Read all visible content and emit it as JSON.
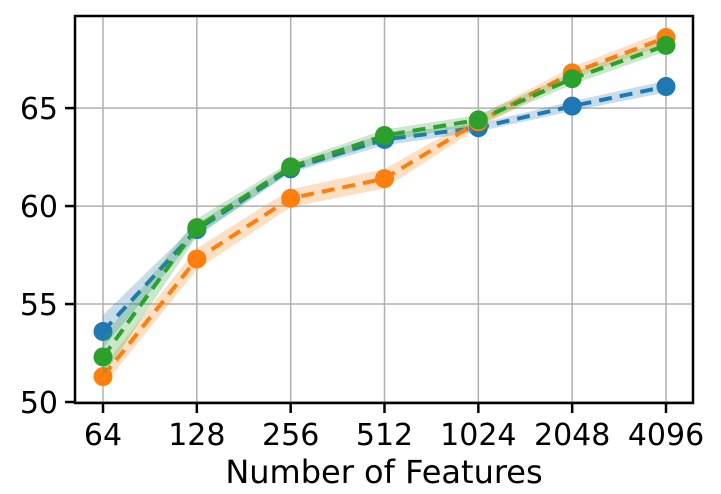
{
  "chart_data": {
    "type": "line",
    "x": [
      64,
      128,
      256,
      512,
      1024,
      2048,
      4096
    ],
    "x_scale": "log2",
    "xtick_labels": [
      "64",
      "128",
      "256",
      "512",
      "1024",
      "2048",
      "4096"
    ],
    "yticks": [
      50,
      55,
      60,
      65
    ],
    "ylim": [
      49.95,
      69.7
    ],
    "xlabel": "Number of Features",
    "ylabel": "",
    "title": "",
    "grid": true,
    "legend": "none",
    "line_style": "dashed",
    "marker": "circle",
    "series": [
      {
        "name": "blue-series",
        "color": "#1f77b4",
        "values": [
          53.6,
          58.8,
          61.9,
          63.4,
          64.0,
          65.1,
          66.1
        ],
        "ci_halfwidth": [
          0.85,
          0.3,
          0.2,
          0.3,
          0.2,
          0.25,
          0.3
        ]
      },
      {
        "name": "orange-series",
        "color": "#ff7f0e",
        "values": [
          51.3,
          57.3,
          60.4,
          61.4,
          64.3,
          66.8,
          68.6
        ],
        "ci_halfwidth": [
          0.5,
          0.55,
          0.45,
          0.5,
          0.3,
          0.3,
          0.35
        ]
      },
      {
        "name": "green-series",
        "color": "#2ca02c",
        "values": [
          52.3,
          58.9,
          62.0,
          63.6,
          64.4,
          66.5,
          68.2
        ],
        "ci_halfwidth": [
          1.0,
          0.45,
          0.25,
          0.3,
          0.25,
          0.3,
          0.3
        ]
      }
    ],
    "colors": {
      "background": "#ffffff",
      "gridline": "#b0b0b0",
      "spine": "#000000",
      "tick_label": "#000000"
    },
    "band_opacity": 0.25
  }
}
